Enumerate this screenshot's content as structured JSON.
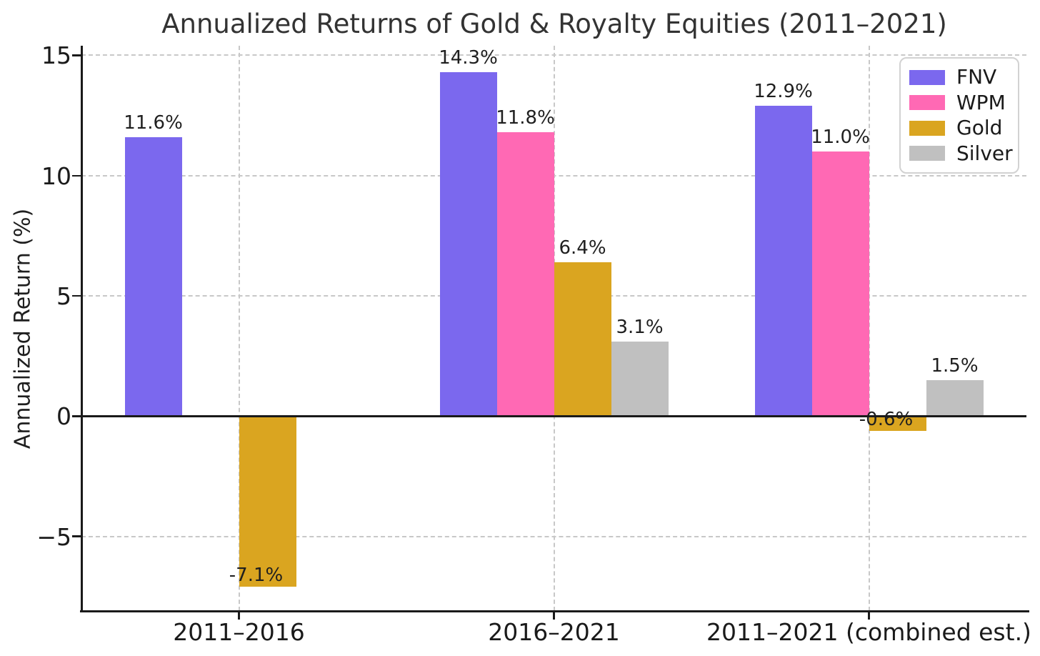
{
  "title": "Annualized Returns of Gold & Royalty Equities (2011–2021)",
  "ylabel": "Annualized Return (%)",
  "chart_data": {
    "type": "bar",
    "title": "Annualized Returns of Gold & Royalty Equities (2011–2021)",
    "xlabel": "",
    "ylabel": "Annualized Return (%)",
    "categories": [
      "2011–2016",
      "2016–2021",
      "2011–2021 (combined est.)"
    ],
    "series": [
      {
        "name": "FNV",
        "color": "#7B68EE",
        "values": [
          11.6,
          14.3,
          12.9
        ],
        "labels": [
          "11.6%",
          "14.3%",
          "12.9%"
        ]
      },
      {
        "name": "WPM",
        "color": "#FF69B4",
        "values": [
          null,
          11.8,
          11.0
        ],
        "labels": [
          null,
          "11.8%",
          "11.0%"
        ]
      },
      {
        "name": "Gold",
        "color": "#DAA520",
        "values": [
          -7.1,
          6.4,
          -0.6
        ],
        "labels": [
          "-7.1%",
          "6.4%",
          "-0.6%"
        ]
      },
      {
        "name": "Silver",
        "color": "#C0C0C0",
        "values": [
          null,
          3.1,
          1.5
        ],
        "labels": [
          null,
          "3.1%",
          "1.5%"
        ]
      }
    ],
    "y_ticks": [
      {
        "value": 15,
        "label": "15"
      },
      {
        "value": 10,
        "label": "10"
      },
      {
        "value": 5,
        "label": "5"
      },
      {
        "value": 0,
        "label": "0"
      },
      {
        "value": -5,
        "label": "−5"
      }
    ],
    "ylim": [
      -8.1,
      15.4
    ],
    "grid": "dashed horizontal at y ticks, dashed vertical at category centers",
    "zero_line": true,
    "legend_position": "upper right",
    "legend_entries": [
      "FNV",
      "WPM",
      "Gold",
      "Silver"
    ]
  },
  "colors": {
    "fnv": "#7B68EE",
    "wpm": "#FF69B4",
    "gold": "#DAA520",
    "silver": "#C0C0C0",
    "grid": "#c8c8c8",
    "axis": "#1a1a1a",
    "title_text": "#333333"
  }
}
